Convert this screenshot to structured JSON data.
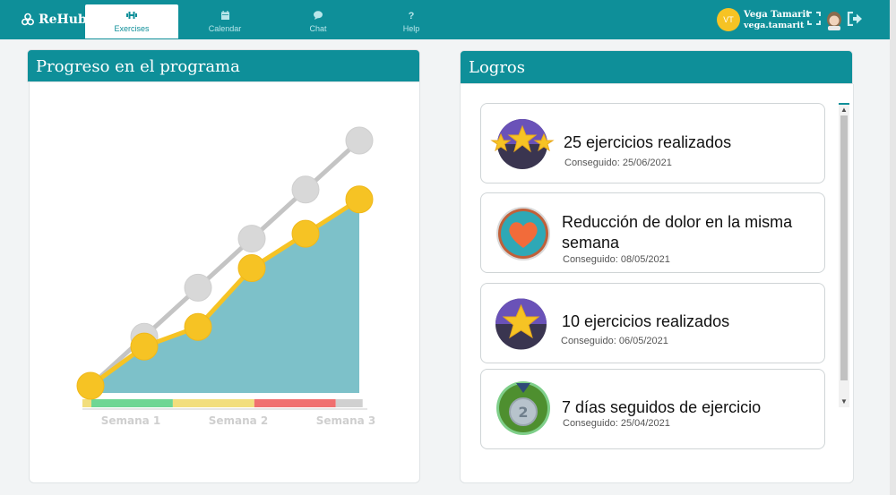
{
  "brand": {
    "name": "ReHub"
  },
  "nav": {
    "tabs": [
      {
        "label": "Exercises",
        "icon": "dumbbell-icon",
        "active": true
      },
      {
        "label": "Calendar",
        "icon": "calendar-icon",
        "active": false
      },
      {
        "label": "Chat",
        "icon": "chat-icon",
        "active": false
      },
      {
        "label": "Help",
        "icon": "question-icon",
        "active": false
      }
    ]
  },
  "user": {
    "initials": "VT",
    "name": "Vega Tamarit",
    "login": "vega.tamarit"
  },
  "progress": {
    "title": "Progreso en el programa",
    "chart_data": {
      "type": "line",
      "categories": [
        "",
        "Semana 1",
        "",
        "Semana 2",
        "",
        "Semana 3"
      ],
      "series": [
        {
          "values": [
            0,
            1,
            2,
            3,
            4,
            5
          ],
          "color": "#c4c4c4"
        },
        {
          "values": [
            0,
            0.8,
            1.2,
            2.4,
            3.1,
            3.8
          ],
          "color": "#f6c324",
          "fill": "#7dc1c9"
        }
      ],
      "ylim": [
        0,
        5
      ],
      "phase_bar_colors": [
        "#6fd694",
        "#f2de7d",
        "#f07070",
        "#d0d0d0"
      ],
      "grid": false
    }
  },
  "logros": {
    "title": "Logros",
    "items": [
      {
        "title": "25 ejercicios realizados",
        "date": "Conseguido: 25/06/2021",
        "badge": "three-stars-badge-icon"
      },
      {
        "title": "Reducción de dolor en la misma semana",
        "date": "Conseguido: 08/05/2021",
        "badge": "heart-badge-icon"
      },
      {
        "title": "10 ejercicios realizados",
        "date": "Conseguido: 06/05/2021",
        "badge": "star-badge-icon"
      },
      {
        "title": "7 días seguidos de ejercicio",
        "date": "Conseguido: 25/04/2021",
        "badge": "medal-2-badge-icon"
      }
    ]
  }
}
